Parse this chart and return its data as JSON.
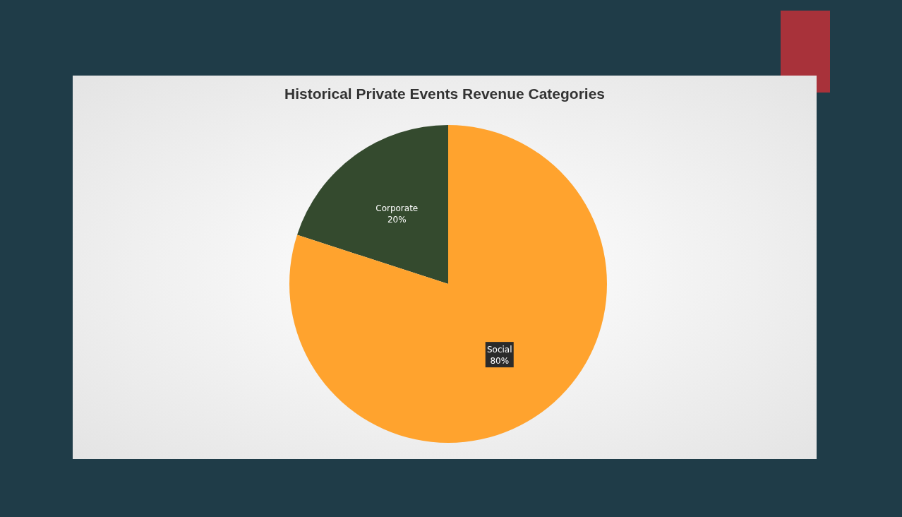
{
  "chart_data": {
    "type": "pie",
    "title": "Historical Private Events Revenue Categories",
    "categories": [
      "Corporate",
      "Social"
    ],
    "values": [
      20,
      80
    ],
    "value_labels": [
      "20%",
      "80%"
    ],
    "colors": [
      "#344a2e",
      "#ffa32e"
    ]
  }
}
